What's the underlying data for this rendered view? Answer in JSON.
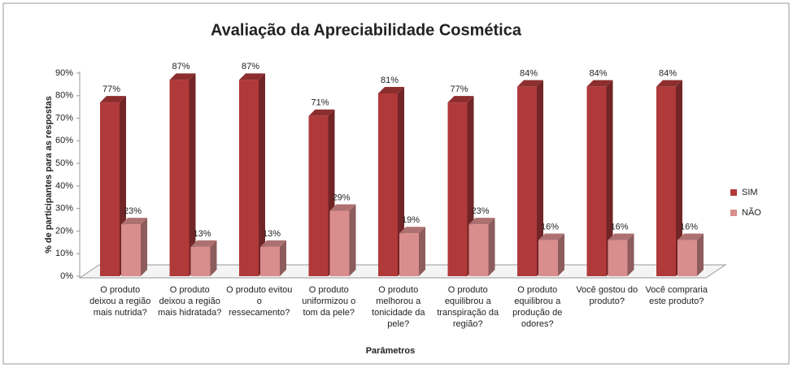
{
  "chart_data": {
    "type": "bar3d",
    "title": "Avaliação da Apreciabilidade Cosmética",
    "x_label": "Parâmetros",
    "y_label": "% de participantes para as respostas",
    "categories": [
      "O produto deixou a região mais nutrida?",
      "O produto deixou a região mais hidratada?",
      "O produto evitou o ressecamento?",
      "O produto uniformizou o tom da pele?",
      "O produto melhorou a tonicidade da pele?",
      "O produto equilibrou a transpiração da região?",
      "O produto equilibrou a produção de odores?",
      "Você gostou do produto?",
      "Você compraria este produto?"
    ],
    "series": [
      {
        "name": "SIM",
        "color": "#b0393a",
        "values": [
          77,
          87,
          87,
          71,
          81,
          77,
          84,
          84,
          84
        ],
        "value_labels": [
          "77%",
          "87%",
          "87%",
          "71%",
          "81%",
          "77%",
          "84%",
          "84%",
          "84%"
        ]
      },
      {
        "name": "NÃO",
        "color": "#d98d8d",
        "values": [
          23,
          13,
          13,
          29,
          19,
          23,
          16,
          16,
          16
        ],
        "value_labels": [
          "23%",
          "13%",
          "13%",
          "29%",
          "19%",
          "23%",
          "16%",
          "16%",
          "16%"
        ]
      }
    ],
    "ylim": [
      0,
      90
    ],
    "yticks": [
      {
        "value": 0,
        "label": "0%"
      },
      {
        "value": 10,
        "label": "10%"
      },
      {
        "value": 20,
        "label": "20%"
      },
      {
        "value": 30,
        "label": "30%"
      },
      {
        "value": 40,
        "label": "40%"
      },
      {
        "value": 50,
        "label": "50%"
      },
      {
        "value": 60,
        "label": "60%"
      },
      {
        "value": 70,
        "label": "70%"
      },
      {
        "value": 80,
        "label": "80%"
      },
      {
        "value": 90,
        "label": "90%"
      }
    ],
    "legend": "right"
  }
}
